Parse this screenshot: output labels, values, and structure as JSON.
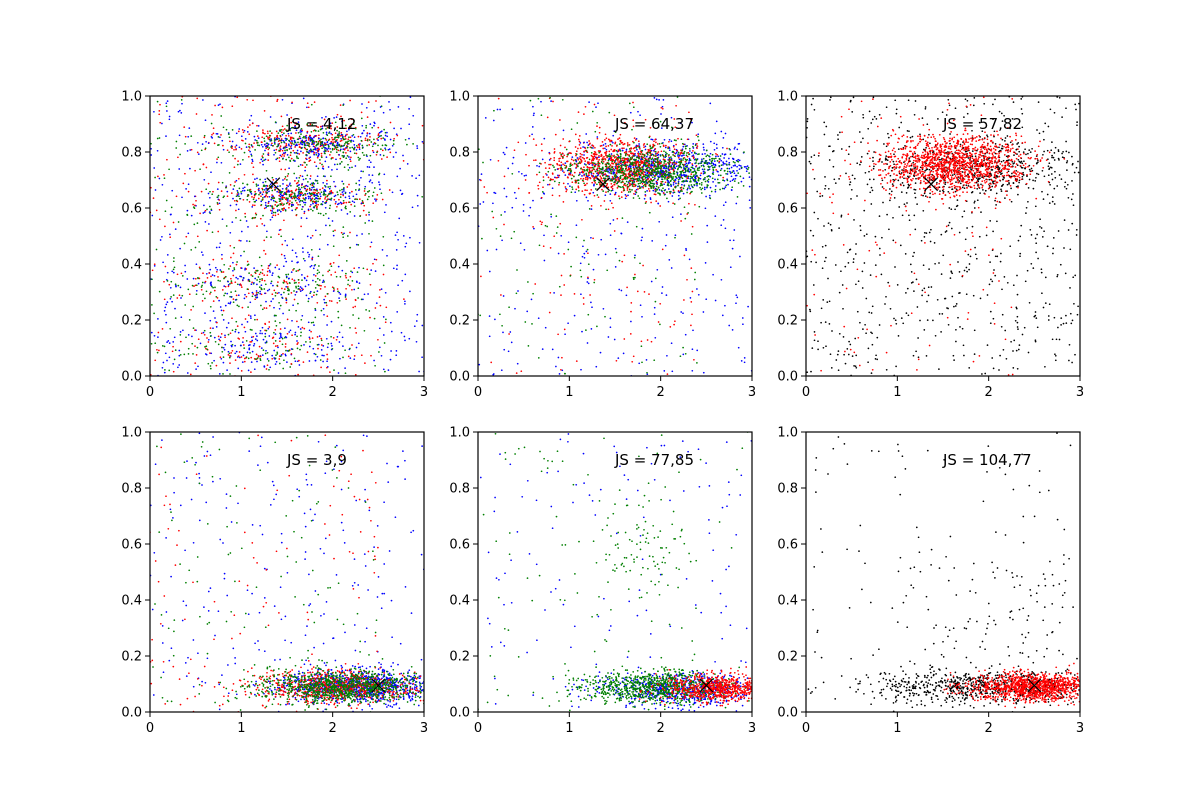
{
  "figure": {
    "layout": "2 rows x 3 columns scatter panels"
  },
  "chart_data": [
    {
      "type": "scatter",
      "annotation": "JS = 4,12",
      "xlim": [
        0,
        3
      ],
      "ylim": [
        0,
        1
      ],
      "xticks": [
        "0",
        "1",
        "2",
        "3"
      ],
      "yticks": [
        "0.0",
        "0.2",
        "0.4",
        "0.6",
        "0.8",
        "1.0"
      ],
      "marker": {
        "x": 1.35,
        "y": 0.685
      },
      "series_colors": [
        "#ff0000",
        "#0000ff",
        "#007f00"
      ],
      "clusters": [
        {
          "color": "#ff0000",
          "cx": 1.8,
          "cy": 0.83,
          "sx": 0.45,
          "sy": 0.035,
          "n": 260
        },
        {
          "color": "#0000ff",
          "cx": 1.8,
          "cy": 0.83,
          "sx": 0.45,
          "sy": 0.035,
          "n": 240
        },
        {
          "color": "#007f00",
          "cx": 1.8,
          "cy": 0.83,
          "sx": 0.45,
          "sy": 0.035,
          "n": 240
        },
        {
          "color": "#ff0000",
          "cx": 1.6,
          "cy": 0.645,
          "sx": 0.4,
          "sy": 0.03,
          "n": 200
        },
        {
          "color": "#0000ff",
          "cx": 1.6,
          "cy": 0.645,
          "sx": 0.4,
          "sy": 0.03,
          "n": 200
        },
        {
          "color": "#007f00",
          "cx": 1.6,
          "cy": 0.645,
          "sx": 0.4,
          "sy": 0.03,
          "n": 200
        },
        {
          "color": "#ff0000",
          "cx": 1.3,
          "cy": 0.33,
          "sx": 0.6,
          "sy": 0.05,
          "n": 120
        },
        {
          "color": "#007f00",
          "cx": 1.3,
          "cy": 0.33,
          "sx": 0.6,
          "sy": 0.05,
          "n": 120
        },
        {
          "color": "#0000ff",
          "cx": 1.3,
          "cy": 0.33,
          "sx": 0.6,
          "sy": 0.05,
          "n": 100
        },
        {
          "color": "#0000ff",
          "cx": 1.2,
          "cy": 0.1,
          "sx": 0.5,
          "sy": 0.05,
          "n": 120
        },
        {
          "color": "#ff0000",
          "cx": 1.2,
          "cy": 0.1,
          "sx": 0.5,
          "sy": 0.05,
          "n": 80
        },
        {
          "color": "#007f00",
          "cx": 1.2,
          "cy": 0.1,
          "sx": 0.5,
          "sy": 0.05,
          "n": 80
        }
      ],
      "uniform": [
        {
          "color": "#0000ff",
          "xr": [
            0,
            3
          ],
          "yr": [
            0,
            1
          ],
          "n": 450
        },
        {
          "color": "#ff0000",
          "xr": [
            0,
            2.6
          ],
          "yr": [
            0,
            1
          ],
          "n": 250
        },
        {
          "color": "#007f00",
          "xr": [
            0,
            2.6
          ],
          "yr": [
            0,
            1
          ],
          "n": 250
        }
      ]
    },
    {
      "type": "scatter",
      "annotation": "JS = 64,37",
      "xlim": [
        0,
        3
      ],
      "ylim": [
        0,
        1
      ],
      "xticks": [
        "0",
        "1",
        "2",
        "3"
      ],
      "yticks": [
        "0.0",
        "0.2",
        "0.4",
        "0.6",
        "0.8",
        "1.0"
      ],
      "marker": {
        "x": 1.37,
        "y": 0.685
      },
      "series_colors": [
        "#ff0000",
        "#0000ff",
        "#007f00"
      ],
      "clusters": [
        {
          "color": "#0000ff",
          "cx": 2.0,
          "cy": 0.74,
          "sx": 0.55,
          "sy": 0.045,
          "n": 700
        },
        {
          "color": "#ff0000",
          "cx": 1.55,
          "cy": 0.75,
          "sx": 0.4,
          "sy": 0.05,
          "n": 900
        },
        {
          "color": "#007f00",
          "cx": 1.95,
          "cy": 0.73,
          "sx": 0.45,
          "sy": 0.04,
          "n": 800
        }
      ],
      "uniform": [
        {
          "color": "#0000ff",
          "xr": [
            0,
            3
          ],
          "yr": [
            0,
            1
          ],
          "n": 300
        },
        {
          "color": "#ff0000",
          "xr": [
            0,
            2.4
          ],
          "yr": [
            0,
            1
          ],
          "n": 130
        },
        {
          "color": "#007f00",
          "xr": [
            0,
            2.4
          ],
          "yr": [
            0,
            1
          ],
          "n": 110
        }
      ]
    },
    {
      "type": "scatter",
      "annotation": "JS = 57,82",
      "xlim": [
        0,
        3
      ],
      "ylim": [
        0,
        1
      ],
      "xticks": [
        "0",
        "1",
        "2",
        "3"
      ],
      "yticks": [
        "0.0",
        "0.2",
        "0.4",
        "0.6",
        "0.8",
        "1.0"
      ],
      "marker": {
        "x": 1.37,
        "y": 0.685
      },
      "series_colors": [
        "#ff0000",
        "#000000"
      ],
      "clusters": [
        {
          "color": "#000000",
          "cx": 1.9,
          "cy": 0.74,
          "sx": 0.6,
          "sy": 0.05,
          "n": 550
        },
        {
          "color": "#ff0000",
          "cx": 1.6,
          "cy": 0.76,
          "sx": 0.38,
          "sy": 0.05,
          "n": 1300
        }
      ],
      "uniform": [
        {
          "color": "#000000",
          "xr": [
            0,
            3
          ],
          "yr": [
            0,
            1
          ],
          "n": 650
        },
        {
          "color": "#ff0000",
          "xr": [
            0,
            2.3
          ],
          "yr": [
            0,
            1
          ],
          "n": 110
        }
      ]
    },
    {
      "type": "scatter",
      "annotation": "JS = 3,9",
      "xlim": [
        0,
        3
      ],
      "ylim": [
        0,
        1
      ],
      "xticks": [
        "0",
        "1",
        "2",
        "3"
      ],
      "yticks": [
        "0.0",
        "0.2",
        "0.4",
        "0.6",
        "0.8",
        "1.0"
      ],
      "marker": {
        "x": 2.5,
        "y": 0.095
      },
      "series_colors": [
        "#ff0000",
        "#0000ff",
        "#007f00"
      ],
      "clusters": [
        {
          "color": "#0000ff",
          "cx": 2.3,
          "cy": 0.09,
          "sx": 0.45,
          "sy": 0.03,
          "n": 900
        },
        {
          "color": "#ff0000",
          "cx": 2.0,
          "cy": 0.09,
          "sx": 0.45,
          "sy": 0.03,
          "n": 700
        },
        {
          "color": "#007f00",
          "cx": 2.1,
          "cy": 0.09,
          "sx": 0.45,
          "sy": 0.03,
          "n": 900
        }
      ],
      "uniform": [
        {
          "color": "#0000ff",
          "xr": [
            0,
            3
          ],
          "yr": [
            0,
            1
          ],
          "n": 220
        },
        {
          "color": "#ff0000",
          "xr": [
            0,
            2.5
          ],
          "yr": [
            0,
            1
          ],
          "n": 110
        },
        {
          "color": "#007f00",
          "xr": [
            0,
            2.5
          ],
          "yr": [
            0,
            1
          ],
          "n": 110
        }
      ]
    },
    {
      "type": "scatter",
      "annotation": "JS = 77,85",
      "xlim": [
        0,
        3
      ],
      "ylim": [
        0,
        1
      ],
      "xticks": [
        "0",
        "1",
        "2",
        "3"
      ],
      "yticks": [
        "0.0",
        "0.2",
        "0.4",
        "0.6",
        "0.8",
        "1.0"
      ],
      "marker": {
        "x": 2.5,
        "y": 0.095
      },
      "series_colors": [
        "#ff0000",
        "#0000ff",
        "#007f00"
      ],
      "clusters": [
        {
          "color": "#0000ff",
          "cx": 2.2,
          "cy": 0.08,
          "sx": 0.45,
          "sy": 0.03,
          "n": 600
        },
        {
          "color": "#007f00",
          "cx": 1.9,
          "cy": 0.09,
          "sx": 0.4,
          "sy": 0.03,
          "n": 800
        },
        {
          "color": "#ff0000",
          "cx": 2.65,
          "cy": 0.085,
          "sx": 0.3,
          "sy": 0.025,
          "n": 700
        },
        {
          "color": "#007f00",
          "cx": 1.8,
          "cy": 0.57,
          "sx": 0.25,
          "sy": 0.08,
          "n": 80
        }
      ],
      "uniform": [
        {
          "color": "#0000ff",
          "xr": [
            0,
            3
          ],
          "yr": [
            0,
            1
          ],
          "n": 140
        },
        {
          "color": "#007f00",
          "xr": [
            0,
            3
          ],
          "yr": [
            0,
            1
          ],
          "n": 100
        }
      ]
    },
    {
      "type": "scatter",
      "annotation": "JS = 104,77",
      "xlim": [
        0,
        3
      ],
      "ylim": [
        0,
        1
      ],
      "xticks": [
        "0",
        "1",
        "2",
        "3"
      ],
      "yticks": [
        "0.0",
        "0.2",
        "0.4",
        "0.6",
        "0.8",
        "1.0"
      ],
      "marker": {
        "x": 2.5,
        "y": 0.095
      },
      "series_colors": [
        "#ff0000",
        "#000000"
      ],
      "clusters": [
        {
          "color": "#000000",
          "cx": 1.9,
          "cy": 0.09,
          "sx": 0.6,
          "sy": 0.03,
          "n": 700
        },
        {
          "color": "#ff0000",
          "cx": 2.5,
          "cy": 0.09,
          "sx": 0.35,
          "sy": 0.025,
          "n": 1200
        },
        {
          "color": "#000000",
          "cx": 2.3,
          "cy": 0.35,
          "sx": 0.5,
          "sy": 0.15,
          "n": 90
        }
      ],
      "uniform": [
        {
          "color": "#000000",
          "xr": [
            0,
            3
          ],
          "yr": [
            0,
            1
          ],
          "n": 110
        }
      ]
    }
  ]
}
